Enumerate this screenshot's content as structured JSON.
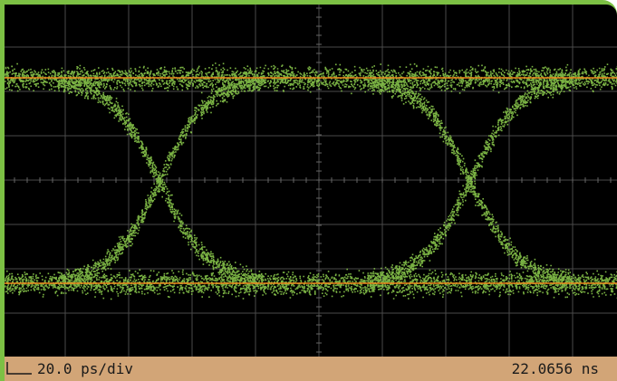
{
  "status_bar": {
    "timebase": "20.0 ps/div",
    "position": "22.0656 ns"
  }
}
